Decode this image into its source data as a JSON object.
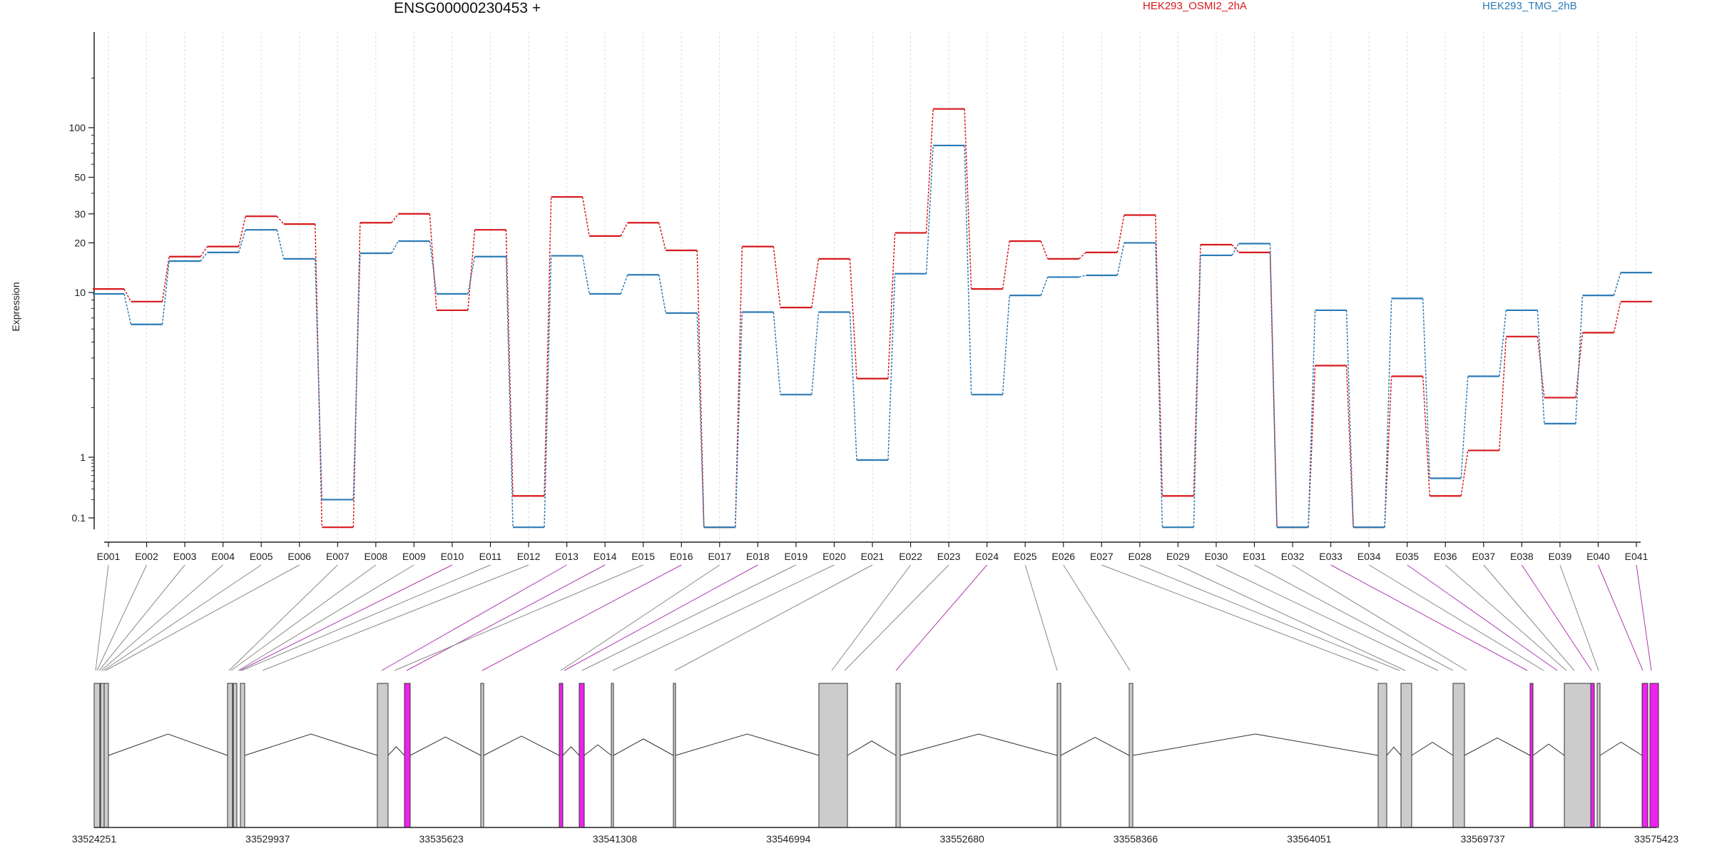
{
  "chart_data": {
    "type": "line",
    "title": "ENSG00000230453 +",
    "ylabel": "Expression",
    "y_scale": "log (0.1–1 segment compressed)",
    "y_ticks": [
      0.1,
      1,
      10,
      20,
      30,
      50,
      100
    ],
    "y_tick_labels": [
      "0.1",
      "1",
      "10",
      "20",
      "30",
      "50",
      "100"
    ],
    "categories": [
      "E001",
      "E002",
      "E003",
      "E004",
      "E005",
      "E006",
      "E007",
      "E008",
      "E009",
      "E010",
      "E011",
      "E012",
      "E013",
      "E014",
      "E015",
      "E016",
      "E017",
      "E018",
      "E019",
      "E020",
      "E021",
      "E022",
      "E023",
      "E024",
      "E025",
      "E026",
      "E027",
      "E028",
      "E029",
      "E030",
      "E031",
      "E032",
      "E033",
      "E034",
      "E035",
      "E036",
      "E037",
      "E038",
      "E039",
      "E040",
      "E041"
    ],
    "series": [
      {
        "name": "HEK293_OSMI2_2hA",
        "color": "#d7191c",
        "values": [
          10.5,
          8.8,
          16.5,
          19,
          29,
          26,
          0.07,
          26.5,
          30,
          7.8,
          24,
          0.23,
          38,
          22,
          26.5,
          18,
          0.07,
          19,
          8.1,
          16,
          3,
          23,
          130,
          10.5,
          20.5,
          16,
          17.5,
          29.5,
          0.23,
          19.5,
          17.5,
          0.07,
          3.6,
          0.07,
          3.1,
          0.23,
          1.1,
          5.4,
          2.3,
          5.7,
          8.8
        ]
      },
      {
        "name": "HEK293_TMG_2hB",
        "color": "#2c7bb6",
        "values": [
          9.8,
          6.4,
          15.5,
          17.5,
          24,
          16,
          0.2,
          17.3,
          20.5,
          9.8,
          16.5,
          0.07,
          16.7,
          9.8,
          12.8,
          7.5,
          0.07,
          7.6,
          2.4,
          7.6,
          0.9,
          13,
          78,
          2.4,
          9.6,
          12.4,
          12.7,
          20,
          0.07,
          16.8,
          19.8,
          0.07,
          7.8,
          0.07,
          9.2,
          0.45,
          3.1,
          7.8,
          1.6,
          9.6,
          13.2
        ]
      }
    ],
    "gene_axis_labels": [
      "33524251",
      "33529937",
      "33535623",
      "33541308",
      "33546994",
      "33552680",
      "33558366",
      "33564051",
      "33569737",
      "33575423"
    ],
    "highlighted_exons": [
      "E010",
      "E013",
      "E014",
      "E016",
      "E018",
      "E024",
      "E033",
      "E035",
      "E038",
      "E040",
      "E041"
    ],
    "highlight_color": "#ee22ee",
    "exon_fill_color": "#cccccc",
    "grid": true,
    "legend_position": "top-right"
  }
}
